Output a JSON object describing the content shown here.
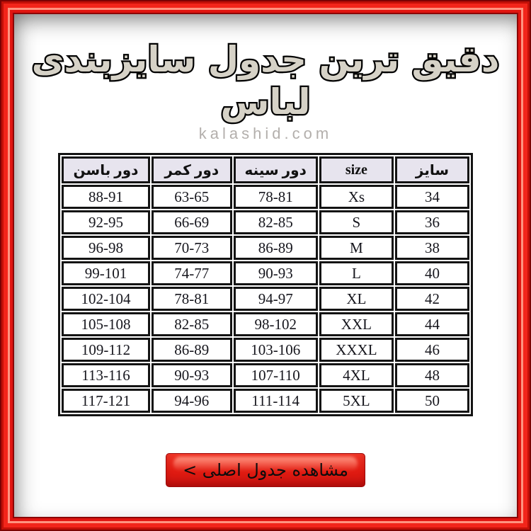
{
  "header": {
    "title": "دقیق ترین جدول سایزبندی لباس",
    "watermark": "kalashid.com"
  },
  "table": {
    "note_order": "columns listed right-to-left as displayed (RTL table)",
    "columns": [
      "سایز",
      "size",
      "دور سینه",
      "دور کمر",
      "دور باسن"
    ],
    "rows": [
      [
        "34",
        "Xs",
        "78-81",
        "63-65",
        "88-91"
      ],
      [
        "36",
        "S",
        "82-85",
        "66-69",
        "92-95"
      ],
      [
        "38",
        "M",
        "86-89",
        "70-73",
        "96-98"
      ],
      [
        "40",
        "L",
        "90-93",
        "74-77",
        "99-101"
      ],
      [
        "42",
        "XL",
        "94-97",
        "78-81",
        "102-104"
      ],
      [
        "44",
        "XXL",
        "98-102",
        "82-85",
        "105-108"
      ],
      [
        "46",
        "XXXL",
        "103-106",
        "86-89",
        "109-112"
      ],
      [
        "48",
        "4XL",
        "107-110",
        "90-93",
        "113-116"
      ],
      [
        "50",
        "5XL",
        "111-114",
        "94-96",
        "117-121"
      ]
    ]
  },
  "button": {
    "label": "مشاهده جدول اصلی >"
  },
  "colors": {
    "frame_red": "#f2251a",
    "frame_dark": "#7c0303",
    "frame_highlight": "#ff9480",
    "header_bg": "#e7e4ee",
    "table_border": "#141414",
    "button_red": "#e01b12",
    "title_fill": "#d6d2c7",
    "watermark_gray": "#b3afac"
  }
}
